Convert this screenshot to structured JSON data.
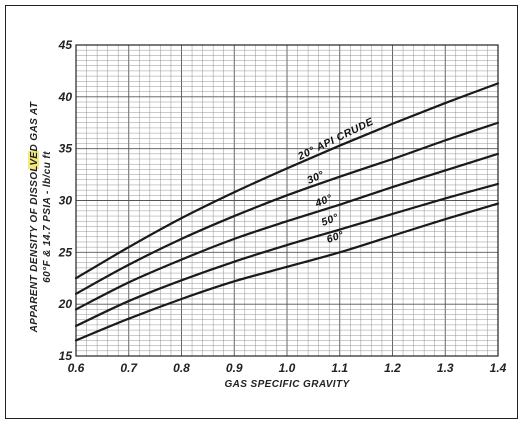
{
  "chart_data": {
    "type": "line",
    "title": "",
    "xlabel": "GAS SPECIFIC GRAVITY",
    "ylabel_line1_prefix": "APPARENT DENSITY OF DISSOLVED ",
    "ylabel_line1_highlight": "GAS",
    "ylabel_line1_suffix": " AT",
    "ylabel_line2": "60°F & 14.7 PSIA - lb/cu ft",
    "xlim": [
      0.6,
      1.4
    ],
    "ylim": [
      15,
      45
    ],
    "x_ticks": [
      "0.6",
      "0.7",
      "0.8",
      "0.9",
      "1.0",
      "1.1",
      "1.2",
      "1.3",
      "1.4"
    ],
    "x_tick_values": [
      0.6,
      0.7,
      0.8,
      0.9,
      1.0,
      1.1,
      1.2,
      1.3,
      1.4
    ],
    "y_ticks": [
      "15",
      "20",
      "25",
      "30",
      "35",
      "40",
      "45"
    ],
    "y_tick_values": [
      15,
      20,
      25,
      30,
      35,
      40,
      45
    ],
    "grid": true,
    "x": [
      0.6,
      0.7,
      0.8,
      0.9,
      1.0,
      1.1,
      1.2,
      1.3,
      1.4
    ],
    "series": [
      {
        "name": "20° API CRUDE",
        "values": [
          22.5,
          25.5,
          28.3,
          30.8,
          33.1,
          35.3,
          37.4,
          39.4,
          41.3
        ]
      },
      {
        "name": "30°",
        "values": [
          21.0,
          23.8,
          26.3,
          28.5,
          30.5,
          32.3,
          34.0,
          35.8,
          37.5
        ]
      },
      {
        "name": "40°",
        "values": [
          19.5,
          22.1,
          24.3,
          26.3,
          28.0,
          29.6,
          31.3,
          32.9,
          34.5
        ]
      },
      {
        "name": "50°",
        "values": [
          17.9,
          20.3,
          22.3,
          24.1,
          25.7,
          27.2,
          28.7,
          30.2,
          31.6
        ]
      },
      {
        "name": "60°",
        "values": [
          16.5,
          18.6,
          20.5,
          22.2,
          23.6,
          25.0,
          26.6,
          28.2,
          29.7
        ]
      }
    ],
    "line_color": "#1a1a1a",
    "grid_color": "#8a8a8a",
    "highlight_color": "#f3ea7a"
  }
}
